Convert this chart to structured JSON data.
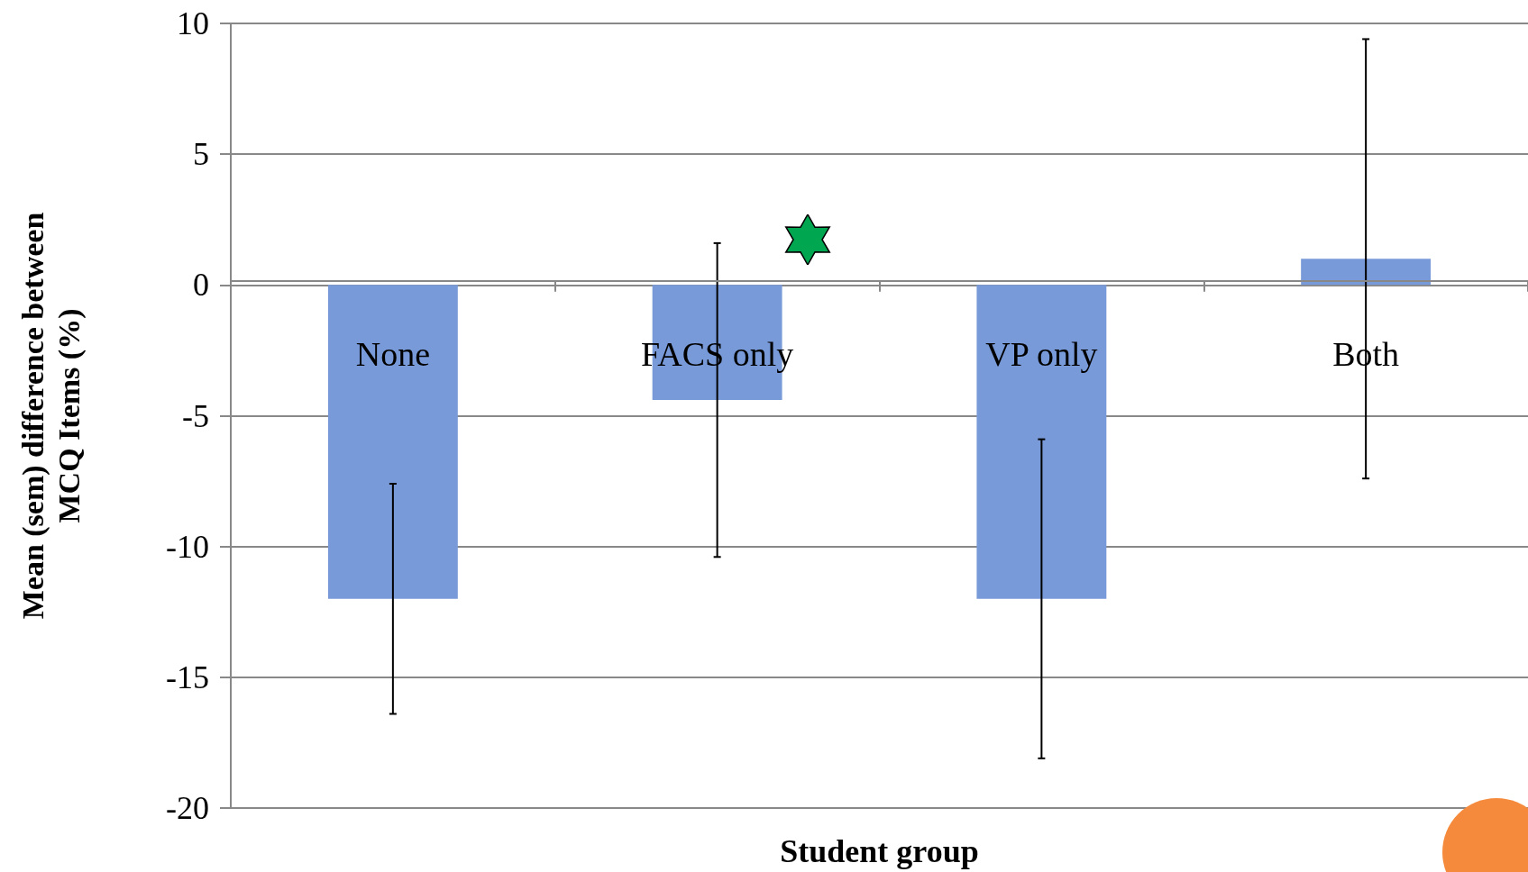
{
  "chart_data": {
    "type": "bar",
    "xlabel": "Student group",
    "ylabel": "Mean (sem) difference between\nMCQ Items (%)",
    "categories": [
      "None",
      "FACS only",
      "VP only",
      "Both"
    ],
    "series": [
      {
        "color": "#789ad8",
        "values": [
          -12,
          -4.4,
          -12,
          1.0
        ],
        "errors": [
          4.4,
          6.0,
          6.1,
          8.4
        ]
      }
    ],
    "ylim": [
      -20,
      10
    ],
    "yticks": [
      -20,
      -15,
      -10,
      -5,
      0,
      5,
      10
    ],
    "grid": "y"
  }
}
